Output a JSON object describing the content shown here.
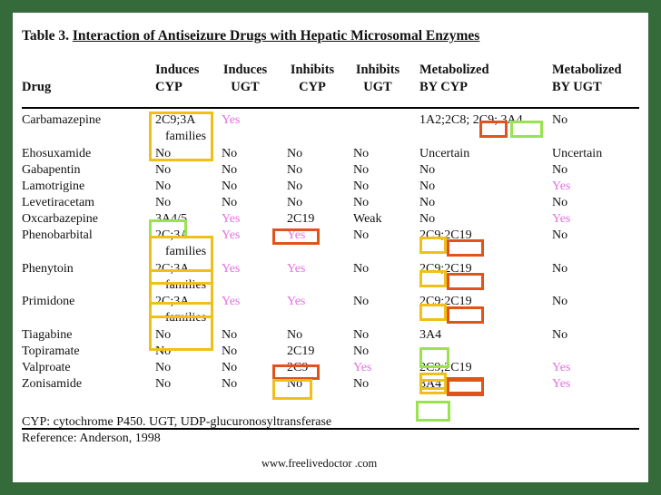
{
  "title": {
    "prefix": "Table 3.",
    "text": "Interaction of Antiseizure Drugs with Hepatic Microsomal Enzymes"
  },
  "header": {
    "drug": "Drug",
    "induces_cyp": [
      "Induces",
      "CYP"
    ],
    "induces_ugt": [
      "Induces",
      "UGT"
    ],
    "inhibits_cyp": [
      "Inhibits",
      "CYP"
    ],
    "inhibits_ugt": [
      "Inhibits",
      "UGT"
    ],
    "metabolized_cyp": [
      "Metabolized",
      "BY CYP"
    ],
    "metabolized_ugt": [
      "Metabolized",
      "BY UGT"
    ]
  },
  "rows": [
    {
      "drug": "Carbamazepine",
      "ind_cyp": "2C9;3A",
      "ind_cyp2": "families",
      "ind_ugt": "Yes",
      "inh_cyp": "",
      "inh_ugt": "",
      "met_cyp": "1A2;2C8; 2C9; 3A4",
      "met_ugt": "No"
    },
    {
      "drug": "Ehosuxamide",
      "ind_cyp": "No",
      "ind_ugt": "No",
      "inh_cyp": "No",
      "inh_ugt": "No",
      "met_cyp": "Uncertain",
      "met_ugt": "Uncertain"
    },
    {
      "drug": "Gabapentin",
      "ind_cyp": "No",
      "ind_ugt": "No",
      "inh_cyp": "No",
      "inh_ugt": "No",
      "met_cyp": "No",
      "met_ugt": "No"
    },
    {
      "drug": "Lamotrigine",
      "ind_cyp": "No",
      "ind_ugt": "No",
      "inh_cyp": "No",
      "inh_ugt": "No",
      "met_cyp": "No",
      "met_ugt": "Yes"
    },
    {
      "drug": "Levetiracetam",
      "ind_cyp": "No",
      "ind_ugt": "No",
      "inh_cyp": "No",
      "inh_ugt": "No",
      "met_cyp": "No",
      "met_ugt": "No"
    },
    {
      "drug": "Oxcarbazepine",
      "ind_cyp": "3A4/5",
      "ind_ugt": "Yes",
      "inh_cyp": "2C19",
      "inh_ugt": "Weak",
      "met_cyp": "No",
      "met_ugt": "Yes"
    },
    {
      "drug": "Phenobarbital",
      "ind_cyp": "2C;3A",
      "ind_cyp2": "families",
      "ind_ugt": "Yes",
      "inh_cyp": "Yes",
      "inh_ugt": "No",
      "met_cyp": "2C9;2C19",
      "met_ugt": "No"
    },
    {
      "drug": "Phenytoin",
      "ind_cyp": "2C;3A",
      "ind_cyp2": "families",
      "ind_ugt": "Yes",
      "inh_cyp": "Yes",
      "inh_ugt": "No",
      "met_cyp": "2C9;2C19",
      "met_ugt": "No"
    },
    {
      "drug": "Primidone",
      "ind_cyp": "2C;3A",
      "ind_cyp2": "families",
      "ind_ugt": "Yes",
      "inh_cyp": "Yes",
      "inh_ugt": "No",
      "met_cyp": "2C9;2C19",
      "met_ugt": "No"
    },
    {
      "drug": "Tiagabine",
      "ind_cyp": "No",
      "ind_ugt": "No",
      "inh_cyp": "No",
      "inh_ugt": "No",
      "met_cyp": "3A4",
      "met_ugt": "No"
    },
    {
      "drug": "Topiramate",
      "ind_cyp": "No",
      "ind_ugt": "No",
      "inh_cyp": "2C19",
      "inh_ugt": "No",
      "met_cyp": "",
      "met_ugt": ""
    },
    {
      "drug": "Valproate",
      "ind_cyp": "No",
      "ind_ugt": "No",
      "inh_cyp": "2C9",
      "inh_ugt": "Yes",
      "met_cyp": "2C9;2C19",
      "met_ugt": "Yes"
    },
    {
      "drug": "Zonisamide",
      "ind_cyp": "No",
      "ind_ugt": "No",
      "inh_cyp": "No",
      "inh_ugt": "No",
      "met_cyp": "3A4",
      "met_ugt": "Yes"
    }
  ],
  "footnote": "CYP: cytochrome P450. UGT, UDP-glucuronosyltransferase",
  "reference": "Reference: Anderson, 1998",
  "url": "www.freelivedoctor .com",
  "colors": {
    "background": "#356a3b",
    "yes_text": "#e36fe3",
    "highlight_yellow": "#f0bf1a",
    "highlight_orange": "#e0541c",
    "highlight_green": "#9be34e"
  }
}
